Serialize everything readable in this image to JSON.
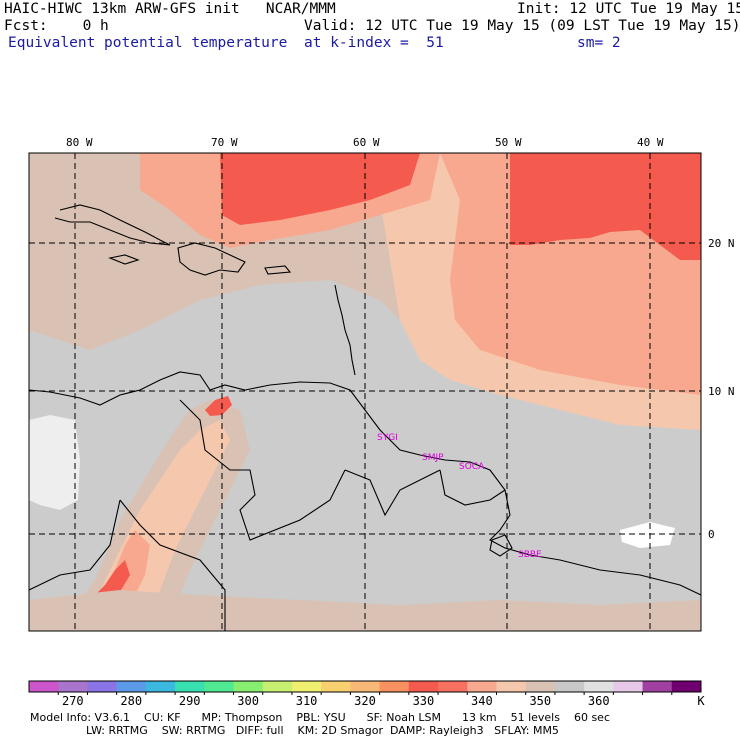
{
  "header": {
    "line1_left": "HAIC-HIWC 13km ARW-GFS init   NCAR/MMM",
    "line1_right": "Init: 12 UTC Tue 19 May 15",
    "line2_left": "Fcst:    0 h",
    "line2_right": "Valid: 12 UTC Tue 19 May 15 (09 LST Tue 19 May 15)",
    "line3_left": "Equivalent potential temperature",
    "line3_mid": "at k-index =  51",
    "line3_right": "sm= 2"
  },
  "map": {
    "lon_labels": [
      "80 W",
      "70 W",
      "60 W",
      "50 W",
      "40 W"
    ],
    "lat_labels": [
      "20 N",
      "10 N",
      "0"
    ],
    "stations": [
      "SYGI",
      "SMJP",
      "SOCA",
      "SBBE"
    ],
    "colors": {
      "gray": "#cccccc",
      "tan": "#d9c2b4",
      "peach": "#f5c8ae",
      "salmon": "#f8a88e",
      "red": "#f45a4e",
      "light": "#eeeeee",
      "white": "#ffffff"
    }
  },
  "colorbar": {
    "colors": [
      "#cc55cc",
      "#a974cc",
      "#8a74e6",
      "#5a9ae8",
      "#3ab8e0",
      "#38e0b0",
      "#50e890",
      "#88ee70",
      "#c8f070",
      "#f0f070",
      "#f8d070",
      "#f8b878",
      "#f89060",
      "#f45a4e",
      "#f87060",
      "#f8a88e",
      "#f5c8ae",
      "#d9c2b4",
      "#c8c8c8",
      "#e0e0e0",
      "#e8c8e8",
      "#a040a0",
      "#700070"
    ],
    "labels": [
      "270",
      "280",
      "290",
      "300",
      "310",
      "320",
      "330",
      "340",
      "350",
      "360"
    ],
    "unit": "K"
  },
  "footer": {
    "line1": "Model Info: V3.6.1    CU: KF      MP: Thompson    PBL: YSU      SF: Noah LSM      13 km    51 levels    60 sec",
    "line2": "                LW: RRTMG    SW: RRTMG   DIFF: full    KM: 2D Smagor  DAMP: Rayleigh3   SFLAY: MM5"
  }
}
